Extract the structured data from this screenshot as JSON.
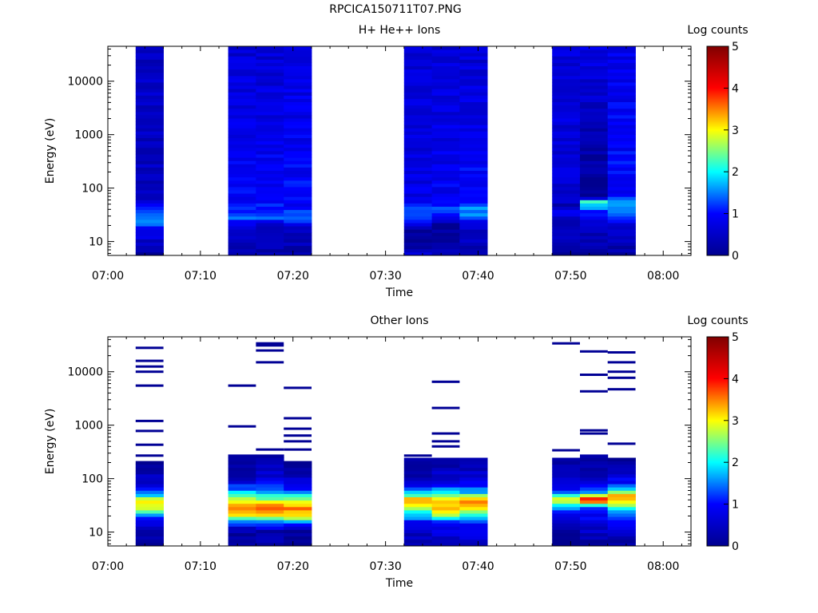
{
  "page": {
    "title": "RPCICA150711T07.PNG"
  },
  "chart_data": [
    {
      "type": "heatmap",
      "title": "H+ He++ Ions",
      "xlabel": "Time",
      "ylabel": "Energy (eV)",
      "colorbar_label": "Log counts",
      "colorbar_ticks": [
        "0",
        "1",
        "2",
        "3",
        "4",
        "5"
      ],
      "clim": [
        0,
        5
      ],
      "xlim": [
        "07:00",
        "08:03"
      ],
      "ylim": [
        5.5,
        45000
      ],
      "yscale": "log",
      "x_ticks": [
        "07:00",
        "07:10",
        "07:20",
        "07:30",
        "07:40",
        "07:50",
        "08:00"
      ],
      "y_ticks": [
        "10",
        "100",
        "1000",
        "10000"
      ],
      "colormap": [
        "#00008f",
        "#0000ff",
        "#00ffff",
        "#ffff00",
        "#ff0000",
        "#800000"
      ],
      "columns": [
        {
          "start": "07:03",
          "end": "07:06",
          "profile": [
            [
              6,
              0.1
            ],
            [
              9,
              0.4
            ],
            [
              20,
              1.2
            ],
            [
              30,
              1.5
            ],
            [
              45,
              1.0
            ],
            [
              60,
              0.4
            ],
            [
              45000,
              0.5
            ]
          ]
        },
        {
          "start": "07:13",
          "end": "07:16",
          "profile": [
            [
              6,
              0.2
            ],
            [
              20,
              0.6
            ],
            [
              30,
              1.5
            ],
            [
              40,
              1.0
            ],
            [
              45000,
              0.6
            ]
          ]
        },
        {
          "start": "07:16",
          "end": "07:19",
          "profile": [
            [
              6,
              0.2
            ],
            [
              20,
              0.6
            ],
            [
              30,
              1.5
            ],
            [
              40,
              1.0
            ],
            [
              45000,
              0.6
            ]
          ]
        },
        {
          "start": "07:19",
          "end": "07:22",
          "profile": [
            [
              6,
              0.2
            ],
            [
              20,
              0.6
            ],
            [
              30,
              1.6
            ],
            [
              40,
              1.0
            ],
            [
              45000,
              0.7
            ]
          ]
        },
        {
          "start": "07:32",
          "end": "07:35",
          "profile": [
            [
              6,
              0.6
            ],
            [
              10,
              0.0
            ],
            [
              18,
              0.2
            ],
            [
              25,
              1.2
            ],
            [
              40,
              1.5
            ],
            [
              60,
              0.8
            ],
            [
              45000,
              0.6
            ]
          ]
        },
        {
          "start": "07:35",
          "end": "07:38",
          "profile": [
            [
              6,
              0.5
            ],
            [
              15,
              0.1
            ],
            [
              20,
              0.0
            ],
            [
              30,
              1.0
            ],
            [
              40,
              1.3
            ],
            [
              60,
              0.9
            ],
            [
              45000,
              0.6
            ]
          ]
        },
        {
          "start": "07:38",
          "end": "07:41",
          "profile": [
            [
              6,
              0.3
            ],
            [
              20,
              0.6
            ],
            [
              30,
              1.4
            ],
            [
              40,
              1.6
            ],
            [
              60,
              1.0
            ],
            [
              45000,
              0.6
            ]
          ]
        },
        {
          "start": "07:48",
          "end": "07:51",
          "profile": [
            [
              6,
              0.1
            ],
            [
              25,
              0.5
            ],
            [
              40,
              0.8
            ],
            [
              45,
              0.0
            ],
            [
              60,
              0.6
            ],
            [
              45000,
              0.7
            ]
          ]
        },
        {
          "start": "07:51",
          "end": "07:54",
          "profile": [
            [
              6,
              0.1
            ],
            [
              20,
              0.5
            ],
            [
              40,
              1.3
            ],
            [
              55,
              2.4
            ],
            [
              70,
              0.0
            ],
            [
              45000,
              0.8
            ]
          ]
        },
        {
          "start": "07:54",
          "end": "07:57",
          "profile": [
            [
              6,
              0.2
            ],
            [
              20,
              0.5
            ],
            [
              35,
              1.6
            ],
            [
              50,
              1.8
            ],
            [
              70,
              1.0
            ],
            [
              45000,
              0.8
            ]
          ]
        }
      ]
    },
    {
      "type": "heatmap",
      "title": "Other Ions",
      "xlabel": "Time",
      "ylabel": "Energy (eV)",
      "colorbar_label": "Log counts",
      "colorbar_ticks": [
        "0",
        "1",
        "2",
        "3",
        "4",
        "5"
      ],
      "clim": [
        0,
        5
      ],
      "xlim": [
        "07:00",
        "08:03"
      ],
      "ylim": [
        5.5,
        45000
      ],
      "yscale": "log",
      "x_ticks": [
        "07:00",
        "07:10",
        "07:20",
        "07:30",
        "07:40",
        "07:50",
        "08:00"
      ],
      "y_ticks": [
        "10",
        "100",
        "1000",
        "10000"
      ],
      "colormap": [
        "#00008f",
        "#0000ff",
        "#00ffff",
        "#ffff00",
        "#ff0000",
        "#800000"
      ],
      "columns": [
        {
          "start": "07:03",
          "end": "07:06",
          "profile": [
            [
              6,
              0.1
            ],
            [
              15,
              0.6
            ],
            [
              20,
              1.5
            ],
            [
              28,
              2.8
            ],
            [
              38,
              3.2
            ],
            [
              50,
              1.6
            ],
            [
              80,
              0.6
            ],
            [
              200,
              0.1
            ]
          ],
          "lines": [
            270,
            430,
            780,
            1200,
            5500,
            10000,
            12500,
            16000,
            28000
          ]
        },
        {
          "start": "07:13",
          "end": "07:16",
          "profile": [
            [
              10,
              0.1
            ],
            [
              15,
              1.3
            ],
            [
              20,
              3.0
            ],
            [
              30,
              3.4
            ],
            [
              40,
              2.8
            ],
            [
              60,
              1.6
            ],
            [
              100,
              0.4
            ],
            [
              270,
              0.1
            ]
          ],
          "lines": [
            950,
            5500
          ]
        },
        {
          "start": "07:16",
          "end": "07:19",
          "profile": [
            [
              10,
              0.2
            ],
            [
              15,
              1.4
            ],
            [
              20,
              3.1
            ],
            [
              30,
              3.6
            ],
            [
              40,
              2.6
            ],
            [
              60,
              1.4
            ],
            [
              100,
              0.6
            ],
            [
              280,
              0.1
            ]
          ],
          "lines": [
            350,
            15000,
            25000,
            31000,
            34000
          ]
        },
        {
          "start": "07:19",
          "end": "07:22",
          "profile": [
            [
              10,
              0.1
            ],
            [
              15,
              1.5
            ],
            [
              20,
              3.1
            ],
            [
              30,
              3.5
            ],
            [
              40,
              2.8
            ],
            [
              60,
              1.2
            ],
            [
              100,
              0.5
            ],
            [
              200,
              0.1
            ]
          ],
          "lines": [
            350,
            500,
            640,
            860,
            1350,
            5000
          ]
        },
        {
          "start": "07:32",
          "end": "07:35",
          "profile": [
            [
              6,
              0.2
            ],
            [
              15,
              0.8
            ],
            [
              20,
              1.8
            ],
            [
              30,
              2.6
            ],
            [
              40,
              3.5
            ],
            [
              60,
              1.3
            ],
            [
              100,
              0.4
            ],
            [
              250,
              0.1
            ]
          ],
          "lines": [
            270
          ]
        },
        {
          "start": "07:35",
          "end": "07:38",
          "profile": [
            [
              6,
              0.3
            ],
            [
              15,
              1.0
            ],
            [
              20,
              2.5
            ],
            [
              30,
              3.2
            ],
            [
              40,
              3.4
            ],
            [
              55,
              2.0
            ],
            [
              90,
              0.7
            ],
            [
              250,
              0.1
            ]
          ],
          "lines": [
            400,
            500,
            700,
            2100,
            6500
          ]
        },
        {
          "start": "07:38",
          "end": "07:41",
          "profile": [
            [
              6,
              0.5
            ],
            [
              15,
              0.9
            ],
            [
              20,
              2.2
            ],
            [
              30,
              3.0
            ],
            [
              40,
              3.6
            ],
            [
              55,
              1.8
            ],
            [
              90,
              0.7
            ],
            [
              250,
              0.1
            ]
          ],
          "lines": []
        },
        {
          "start": "07:48",
          "end": "07:51",
          "profile": [
            [
              6,
              0.1
            ],
            [
              15,
              0.4
            ],
            [
              25,
              1.0
            ],
            [
              35,
              2.5
            ],
            [
              45,
              2.8
            ],
            [
              60,
              1.0
            ],
            [
              100,
              0.4
            ],
            [
              220,
              0.1
            ]
          ],
          "lines": [
            340,
            34000
          ]
        },
        {
          "start": "07:51",
          "end": "07:54",
          "profile": [
            [
              6,
              0.1
            ],
            [
              20,
              0.9
            ],
            [
              30,
              1.5
            ],
            [
              40,
              4.2
            ],
            [
              55,
              1.6
            ],
            [
              100,
              0.5
            ],
            [
              270,
              0.1
            ]
          ],
          "lines": [
            700,
            800,
            4300,
            8800,
            24000
          ]
        },
        {
          "start": "07:54",
          "end": "07:57",
          "profile": [
            [
              6,
              0.2
            ],
            [
              15,
              0.8
            ],
            [
              25,
              1.8
            ],
            [
              35,
              3.0
            ],
            [
              50,
              3.2
            ],
            [
              80,
              1.0
            ],
            [
              230,
              0.1
            ]
          ],
          "lines": [
            450,
            4700,
            7700,
            10000,
            15000,
            23000
          ]
        }
      ]
    }
  ]
}
